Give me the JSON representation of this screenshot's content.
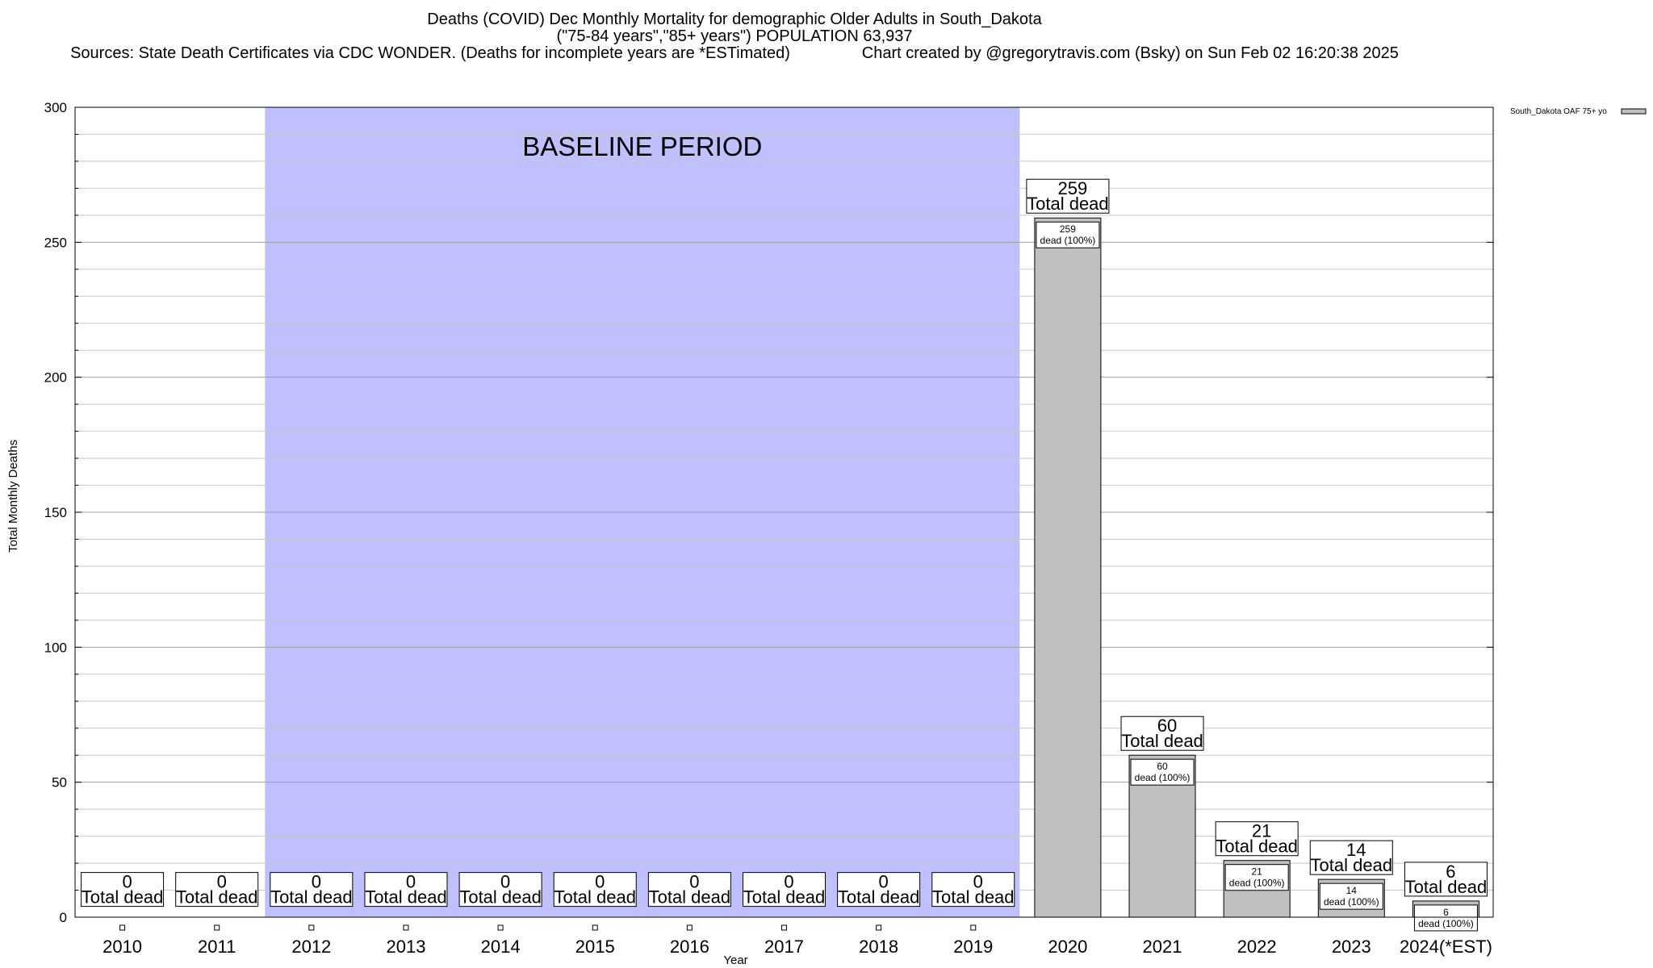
{
  "title": {
    "line1": "Deaths (COVID) Dec Monthly Mortality for demographic Older Adults in South_Dakota",
    "line2": "(\"75-84 years\",\"85+ years\") POPULATION 63,937",
    "sources": "Sources: State Death Certificates via CDC WONDER. (Deaths for incomplete years are *ESTimated)",
    "credit": "Chart created by @gregorytravis.com (Bsky) on Sun Feb 02 16:20:38 2025"
  },
  "chart_data": {
    "type": "bar",
    "categories": [
      "2010",
      "2011",
      "2012",
      "2013",
      "2014",
      "2015",
      "2016",
      "2017",
      "2018",
      "2019",
      "2020",
      "2021",
      "2022",
      "2023",
      "2024(*EST)"
    ],
    "series": [
      {
        "name": "South_Dakota OAF 75+ yo",
        "values": [
          0,
          0,
          0,
          0,
          0,
          0,
          0,
          0,
          0,
          0,
          259,
          60,
          21,
          14,
          6
        ]
      }
    ],
    "xlabel": "Year",
    "ylabel": "Total Monthly Deaths",
    "ylim": [
      0,
      300
    ],
    "yticks": [
      0,
      50,
      100,
      150,
      200,
      250,
      300
    ],
    "minor_grid_step": 10,
    "grid": true,
    "legend_position": "top-right",
    "bar_color": "#c0c0c0",
    "baseline_period": {
      "label": "BASELINE PERIOD",
      "from": "2012",
      "to": "2019",
      "color": "#c0c0ff"
    },
    "total_label": "Total dead",
    "share_label": "dead (100%)"
  }
}
